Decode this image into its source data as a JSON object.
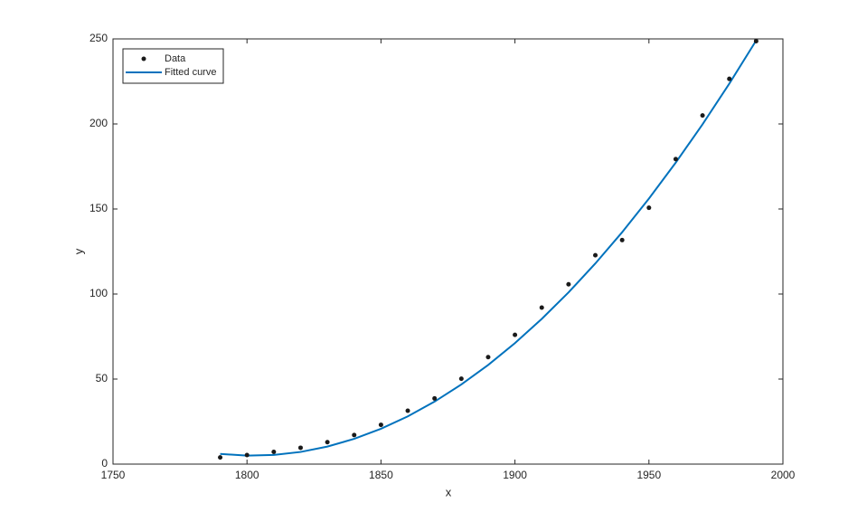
{
  "chart_data": {
    "type": "line",
    "xlabel": "x",
    "ylabel": "y",
    "xlim": [
      1750,
      2000
    ],
    "xticks": [
      1750,
      1800,
      1850,
      1900,
      1950,
      2000
    ],
    "ylim": [
      0,
      250
    ],
    "yticks": [
      0,
      50,
      100,
      150,
      200,
      250
    ],
    "grid": false,
    "legend": "upper left",
    "series": [
      {
        "name": "Data",
        "color": "#1a1a1a",
        "style": "markers",
        "x": [
          1790,
          1800,
          1810,
          1820,
          1830,
          1840,
          1850,
          1860,
          1870,
          1880,
          1890,
          1900,
          1910,
          1920,
          1930,
          1940,
          1950,
          1960,
          1970,
          1980,
          1990
        ],
        "values": [
          3.9,
          5.3,
          7.2,
          9.6,
          12.9,
          17.1,
          23.1,
          31.4,
          38.6,
          50.2,
          62.9,
          76.0,
          92.0,
          105.7,
          122.8,
          131.7,
          150.7,
          179.3,
          205.0,
          226.5,
          248.7
        ]
      },
      {
        "name": "Fitted curve",
        "color": "#0072bd",
        "style": "line",
        "x": [
          1790,
          1800,
          1810,
          1820,
          1830,
          1840,
          1850,
          1860,
          1870,
          1880,
          1890,
          1900,
          1910,
          1920,
          1930,
          1940,
          1950,
          1960,
          1970,
          1980,
          1990
        ],
        "values": [
          6,
          5.0,
          5.38,
          7.15,
          10.31,
          14.84,
          20.77,
          28.07,
          36.75,
          46.83,
          58.29,
          71.13,
          85.36,
          100.96,
          117.96,
          136.34,
          156.11,
          177.26,
          199.78,
          223.7,
          249.0
        ]
      }
    ]
  }
}
